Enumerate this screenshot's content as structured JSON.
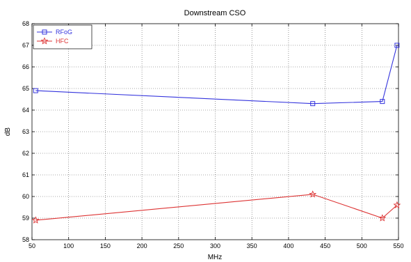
{
  "chart_data": {
    "type": "line",
    "title": "Downstream CSO",
    "xlabel": "MHz",
    "ylabel": "dB",
    "xlim": [
      50,
      550
    ],
    "ylim": [
      58,
      68
    ],
    "xticks": [
      50,
      100,
      150,
      200,
      250,
      300,
      350,
      400,
      450,
      500,
      550
    ],
    "yticks": [
      58,
      59,
      60,
      61,
      62,
      63,
      64,
      65,
      66,
      67,
      68
    ],
    "grid": true,
    "grid_style": "dotted",
    "legend_position": "top-left",
    "series": [
      {
        "name": "RFoG",
        "color": "#3333dd",
        "marker": "square",
        "x": [
          55,
          433,
          528,
          548
        ],
        "y": [
          64.9,
          64.3,
          64.4,
          67.0
        ]
      },
      {
        "name": "HFC",
        "color": "#dd3333",
        "marker": "star",
        "x": [
          55,
          433,
          528,
          548
        ],
        "y": [
          58.9,
          60.1,
          59.0,
          59.6
        ]
      }
    ]
  }
}
